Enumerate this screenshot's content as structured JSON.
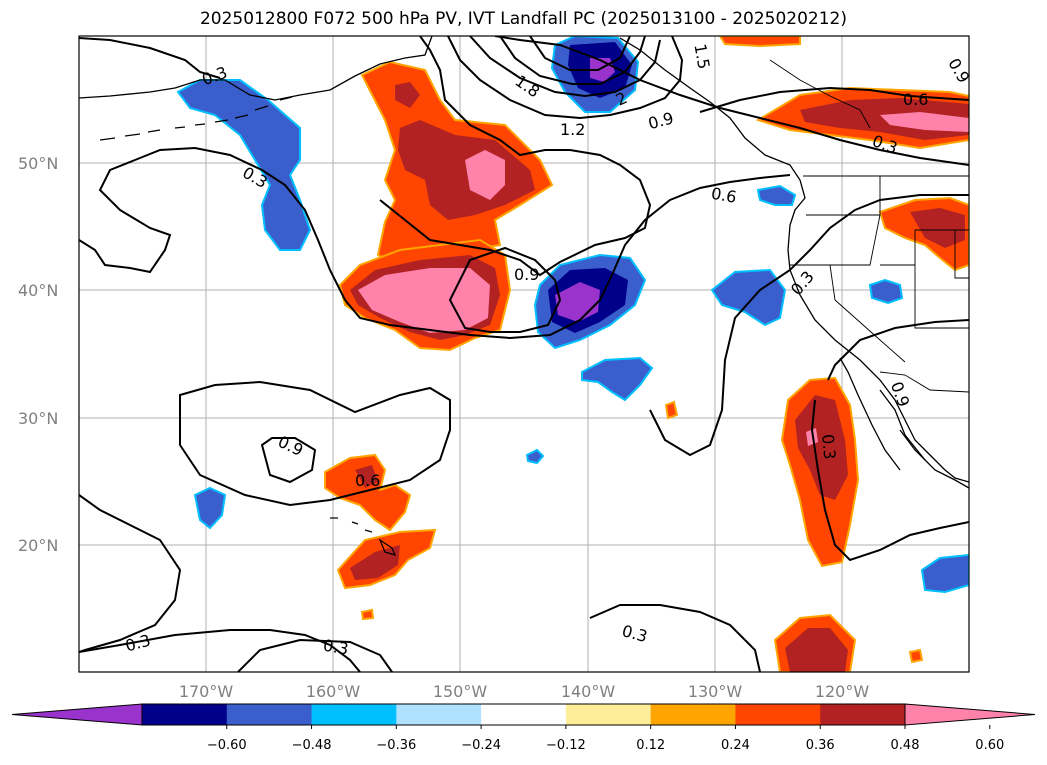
{
  "title": "2025012800 F072 500 hPa PV, IVT Landfall PC (2025013100 - 2025020212)",
  "lat_labels": [
    "50°N",
    "40°N",
    "30°N",
    "20°N"
  ],
  "lon_labels": [
    "170°W",
    "160°W",
    "150°W",
    "140°W",
    "130°W",
    "120°W"
  ],
  "colorbar": {
    "tick_labels": [
      "−0.60",
      "−0.48",
      "−0.36",
      "−0.24",
      "−0.12",
      "0.12",
      "0.24",
      "0.36",
      "0.48",
      "0.60"
    ],
    "colors": [
      "#9933cc",
      "#00008b",
      "#3a5fcd",
      "#00bfff",
      "#b0e2ff",
      "#ffffff",
      "#ffee99",
      "#ffa500",
      "#ff4500",
      "#b22222",
      "#ff82ab"
    ]
  },
  "contour_labels": [
    "0.3",
    "0.3",
    "1.8",
    "1.5",
    "2",
    "1.2",
    "0.9",
    "0.9",
    "0.6",
    "0.6",
    "0.3",
    "0.9",
    "0.3",
    "0.9",
    "0.6",
    "0.3",
    "0.3",
    "0.3",
    "0.3",
    "0.9"
  ],
  "colors": {
    "grid": "#b0b0b0",
    "coast": "#000000",
    "contour": "#000000"
  }
}
